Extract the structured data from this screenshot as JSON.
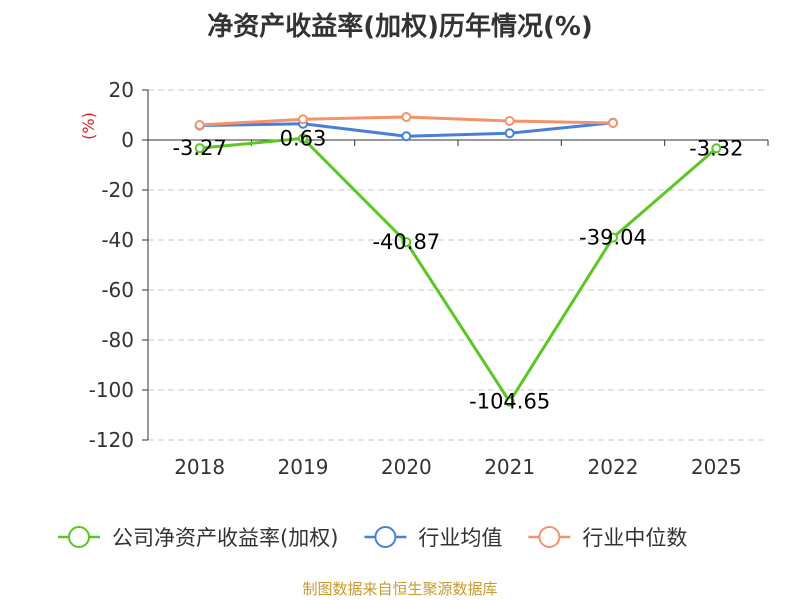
{
  "chart_data": {
    "type": "line",
    "title": "净资产收益率(加权)历年情况(%)",
    "ylabel": "(%)",
    "xlabel": "",
    "categories": [
      "2018",
      "2019",
      "2020",
      "2021",
      "2022",
      "2025"
    ],
    "ylim": [
      -120,
      20
    ],
    "yticks": [
      20,
      0,
      -20,
      -40,
      -60,
      -80,
      -100,
      -120
    ],
    "grid": true,
    "legend_position": "bottom",
    "series": [
      {
        "name": "公司净资产收益率(加权)",
        "color": "#5cc624",
        "values": [
          -3.27,
          0.63,
          -40.87,
          -104.65,
          -39.04,
          -3.32
        ],
        "labels": [
          "-3.27",
          "0.63",
          "-40.87",
          "-104.65",
          "-39.04",
          "-3.32"
        ]
      },
      {
        "name": "行业均值",
        "color": "#4a7fd8",
        "values": [
          5.8,
          6.5,
          1.5,
          2.7,
          6.9,
          null
        ]
      },
      {
        "name": "行业中位数",
        "color": "#f4936b",
        "values": [
          6.0,
          8.3,
          9.2,
          7.6,
          6.8,
          null
        ]
      }
    ]
  },
  "source": "制图数据来自恒生聚源数据库"
}
